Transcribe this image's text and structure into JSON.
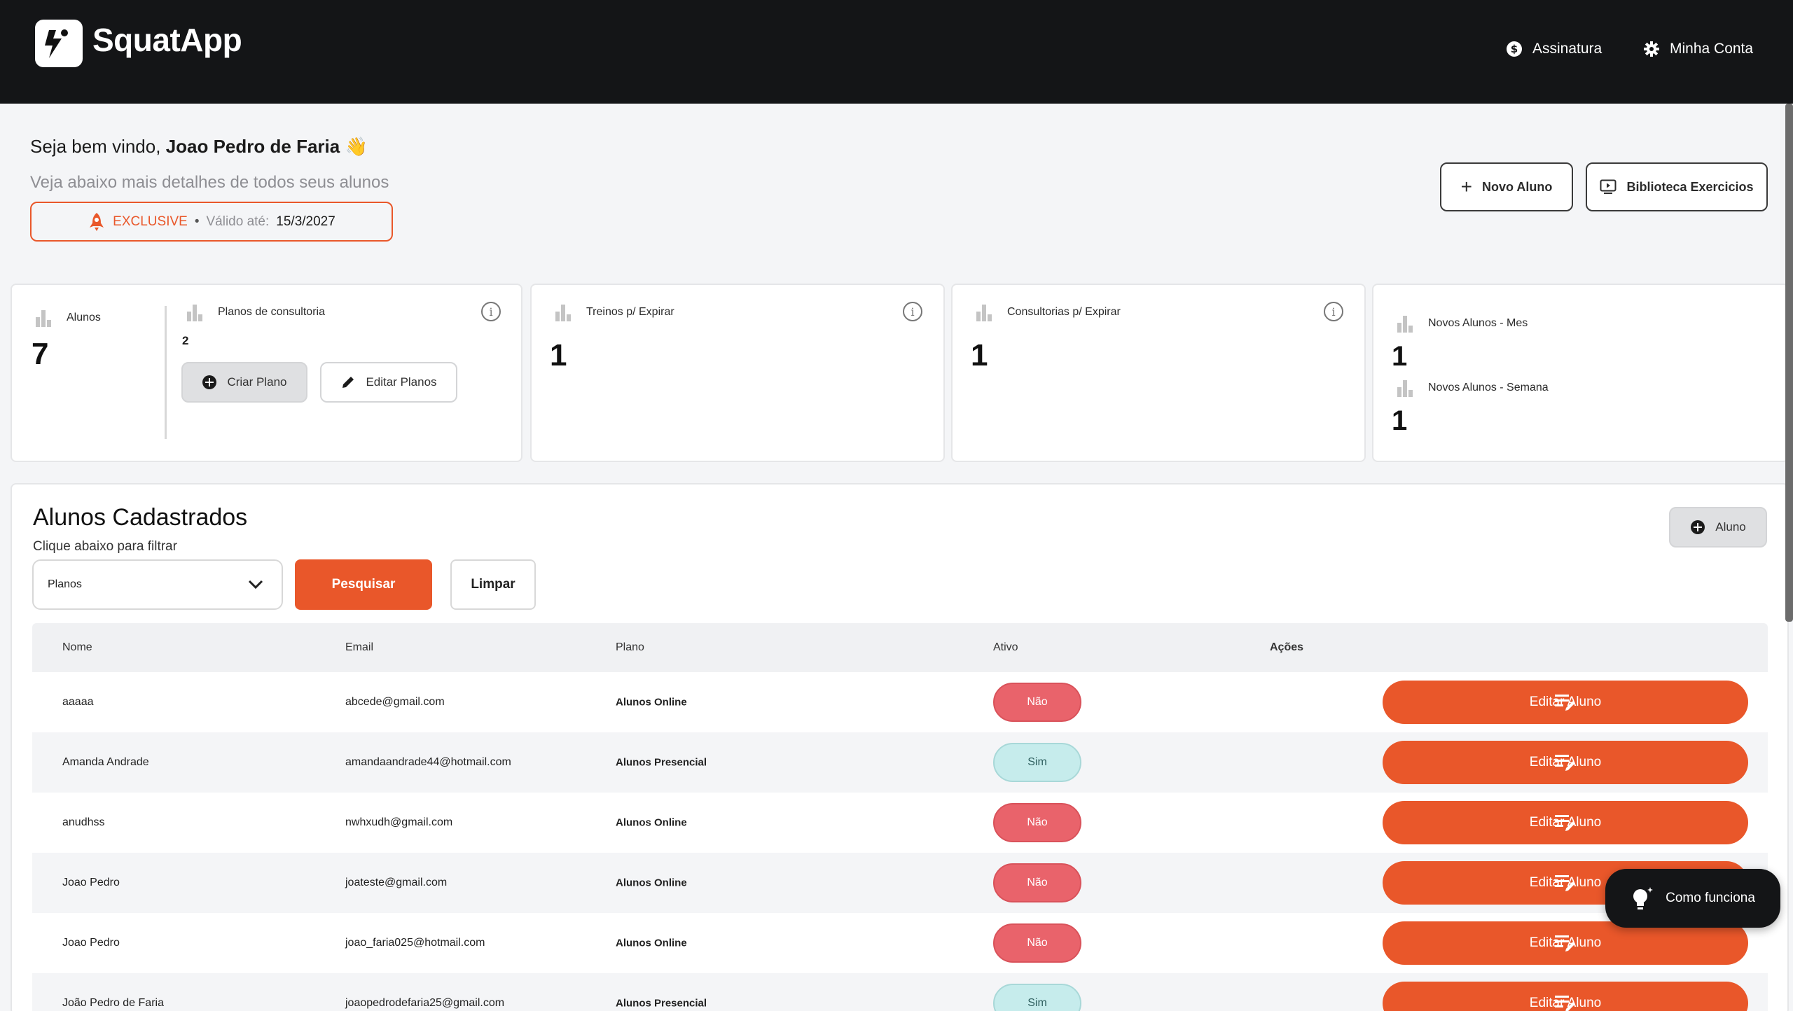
{
  "header": {
    "brand": "SquatApp",
    "nav": {
      "subscription": "Assinatura",
      "account": "Minha Conta"
    }
  },
  "welcome": {
    "greeting": "Seja bem vindo,",
    "user_name": "Joao Pedro de Faria",
    "wave": "👋",
    "subtitle": "Veja abaixo mais detalhes de todos seus alunos",
    "plan_name": "EXCLUSIVE",
    "separator": "•",
    "valid_label": "Válido até:",
    "valid_date": "15/3/2027"
  },
  "actions": {
    "new_student": "Novo Aluno",
    "exercise_library": "Biblioteca Exercicios"
  },
  "stats": {
    "students_label": "Alunos",
    "students_value": "7",
    "plans_label": "Planos de consultoria",
    "plans_value": "2",
    "create_plan": "Criar Plano",
    "edit_plans": "Editar Planos",
    "trainings_expiring_label": "Treinos p/ Expirar",
    "trainings_expiring_value": "1",
    "consults_expiring_label": "Consultorias p/ Expirar",
    "consults_expiring_value": "1",
    "new_month_label": "Novos Alunos - Mes",
    "new_month_value": "1",
    "new_week_label": "Novos Alunos - Semana",
    "new_week_value": "1"
  },
  "students": {
    "title": "Alunos Cadastrados",
    "subtitle": "Clique abaixo para filtrar",
    "add_button": "Aluno",
    "filter_selected": "Planos",
    "search_button": "Pesquisar",
    "clear_button": "Limpar",
    "columns": {
      "name": "Nome",
      "email": "Email",
      "plan": "Plano",
      "active": "Ativo",
      "actions": "Ações"
    },
    "edit_label": "Editar Aluno",
    "rows": [
      {
        "name": "aaaaa",
        "email": "abcede@gmail.com",
        "plan": "Alunos Online",
        "active": "Não"
      },
      {
        "name": "Amanda Andrade",
        "email": "amandaandrade44@hotmail.com",
        "plan": "Alunos Presencial",
        "active": "Sim"
      },
      {
        "name": "anudhss",
        "email": "nwhxudh@gmail.com",
        "plan": "Alunos Online",
        "active": "Não"
      },
      {
        "name": "Joao Pedro",
        "email": "joateste@gmail.com",
        "plan": "Alunos Online",
        "active": "Não"
      },
      {
        "name": "Joao Pedro",
        "email": "joao_faria025@hotmail.com",
        "plan": "Alunos Online",
        "active": "Não"
      },
      {
        "name": "João Pedro de Faria",
        "email": "joaopedrodefaria25@gmail.com",
        "plan": "Alunos Presencial",
        "active": "Sim"
      }
    ]
  },
  "help": {
    "label": "Como funciona"
  },
  "colors": {
    "accent": "#e9572a",
    "header_bg": "#141517",
    "inactive": "#e9636b",
    "active": "#c6ecec"
  }
}
